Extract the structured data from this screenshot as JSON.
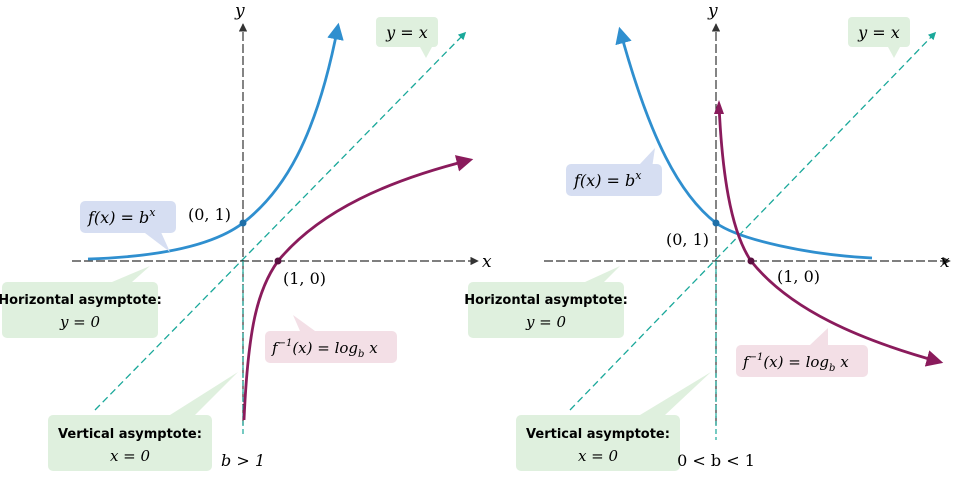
{
  "colors": {
    "exp_curve": "#2f8fcf",
    "log_curve": "#8a1b5c",
    "identity_line": "#1aa89a",
    "axis": "#333333",
    "box_green": "#dff0de",
    "box_blue": "#d6def2",
    "box_pink": "#f3dfe6"
  },
  "panels": [
    {
      "axis_x": "x",
      "axis_y": "y",
      "identity": "y = x",
      "exp_label": "f(x) = b",
      "exp_sup": "x",
      "log_label_pre": "f",
      "log_label_sup": "−1",
      "log_label_mid": "(x) = log",
      "log_label_sub": "b",
      "log_label_post": " x",
      "point_exp": "(0, 1)",
      "point_log": "(1, 0)",
      "horizontal_title": "Horizontal asymptote:",
      "horizontal_eq": "y = 0",
      "vertical_title": "Vertical asymptote:",
      "vertical_eq": "x = 0",
      "condition": "b > 1"
    },
    {
      "axis_x": "x",
      "axis_y": "y",
      "identity": "y = x",
      "exp_label": "f(x) = b",
      "exp_sup": "x",
      "log_label_pre": "f",
      "log_label_sup": "−1",
      "log_label_mid": "(x) = log",
      "log_label_sub": "b",
      "log_label_post": " x",
      "point_exp": "(0, 1)",
      "point_log": "(1, 0)",
      "horizontal_title": "Horizontal asymptote:",
      "horizontal_eq": "y = 0",
      "vertical_title": "Vertical asymptote:",
      "vertical_eq": "x = 0",
      "condition": "0 < b < 1"
    }
  ]
}
